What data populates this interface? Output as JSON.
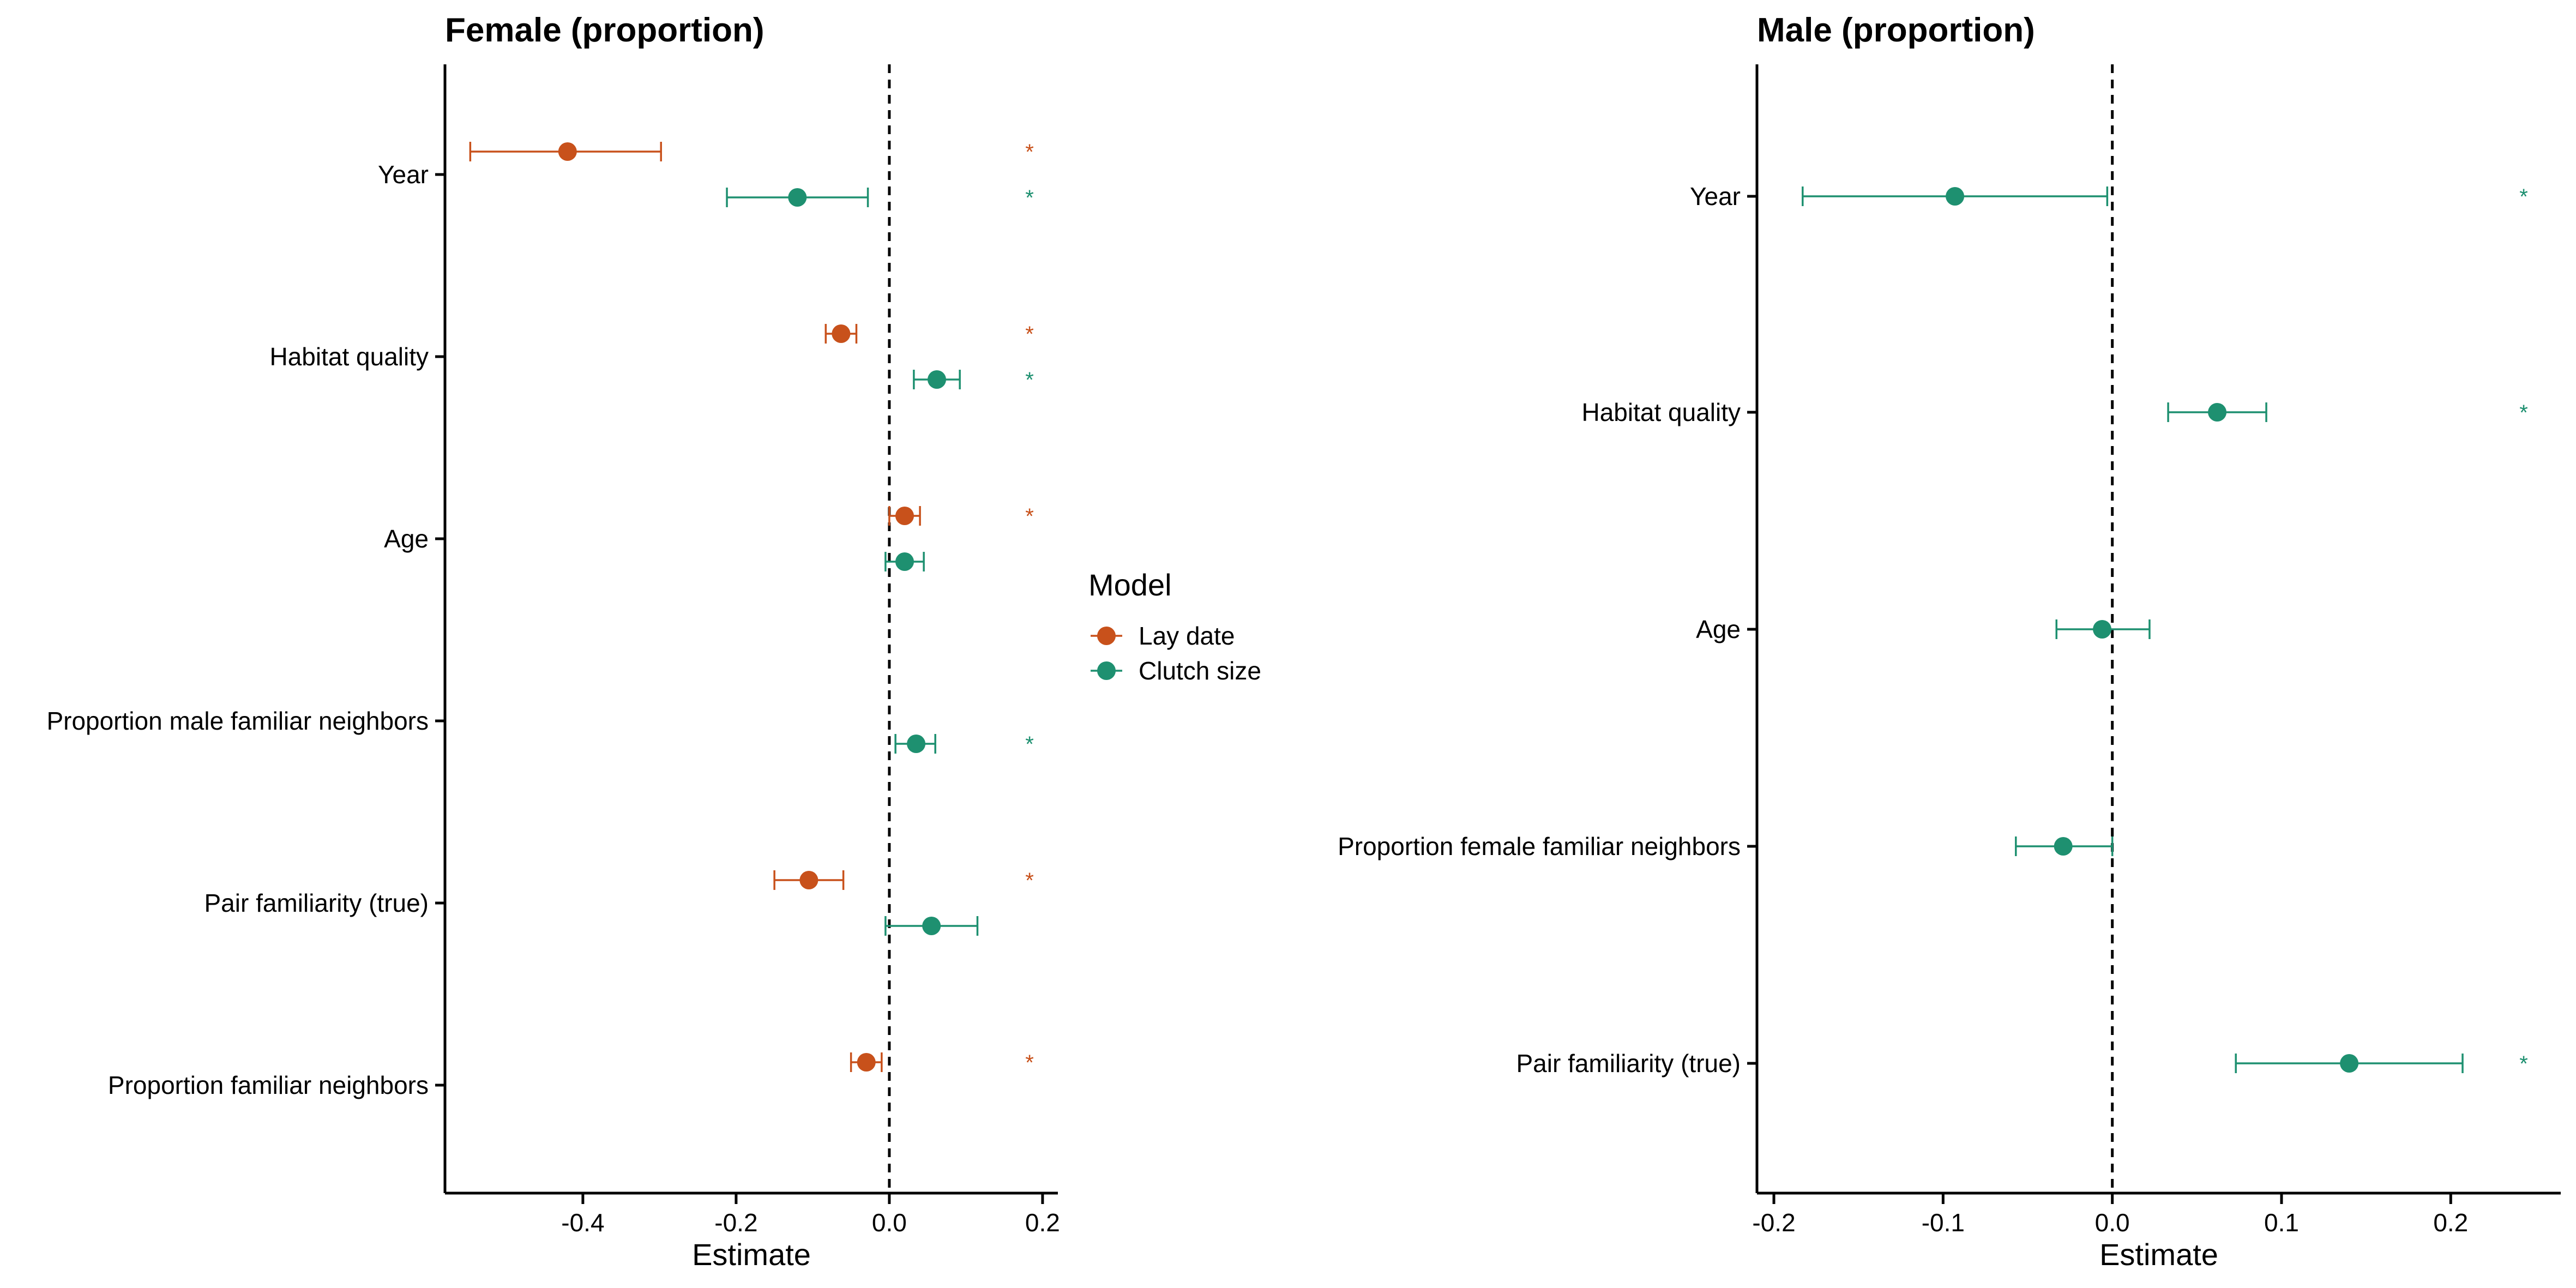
{
  "colors": {
    "lay_date": "#C8511B",
    "clutch_size": "#1E9070",
    "axis": "#000000"
  },
  "legend": {
    "title": "Model",
    "items": [
      {
        "label": "Lay date",
        "color": "#C8511B"
      },
      {
        "label": "Clutch size",
        "color": "#1E9070"
      }
    ]
  },
  "chart_data": [
    {
      "type": "forest",
      "title": "Female (proportion)",
      "xlabel": "Estimate",
      "xlim": [
        -0.58,
        0.22
      ],
      "xticks": [
        -0.4,
        -0.2,
        0.0,
        0.2
      ],
      "xtick_labels": [
        "-0.4",
        "-0.2",
        "0.0",
        "0.2"
      ],
      "reference_line": 0,
      "categories": [
        "Year",
        "Habitat quality",
        "Age",
        "Proportion male familiar neighbors",
        "Pair familiarity (true)",
        "Proportion familiar neighbors"
      ],
      "series": [
        {
          "name": "Lay date",
          "color": "#C8511B",
          "points": [
            {
              "category": "Year",
              "estimate": -0.42,
              "lower": -0.547,
              "upper": -0.298,
              "significant": true
            },
            {
              "category": "Habitat quality",
              "estimate": -0.063,
              "lower": -0.083,
              "upper": -0.043,
              "significant": true
            },
            {
              "category": "Age",
              "estimate": 0.02,
              "lower": 0.0,
              "upper": 0.04,
              "significant": true
            },
            {
              "category": "Pair familiarity (true)",
              "estimate": -0.105,
              "lower": -0.15,
              "upper": -0.06,
              "significant": true
            },
            {
              "category": "Proportion familiar neighbors",
              "estimate": -0.03,
              "lower": -0.05,
              "upper": -0.01,
              "significant": true
            }
          ]
        },
        {
          "name": "Clutch size",
          "color": "#1E9070",
          "points": [
            {
              "category": "Year",
              "estimate": -0.12,
              "lower": -0.212,
              "upper": -0.028,
              "significant": true
            },
            {
              "category": "Habitat quality",
              "estimate": 0.062,
              "lower": 0.032,
              "upper": 0.092,
              "significant": true
            },
            {
              "category": "Age",
              "estimate": 0.02,
              "lower": -0.005,
              "upper": 0.045,
              "significant": false
            },
            {
              "category": "Proportion male familiar neighbors",
              "estimate": 0.035,
              "lower": 0.008,
              "upper": 0.06,
              "significant": true
            },
            {
              "category": "Pair familiarity (true)",
              "estimate": 0.055,
              "lower": -0.005,
              "upper": 0.115,
              "significant": false
            }
          ]
        }
      ]
    },
    {
      "type": "forest",
      "title": "Male (proportion)",
      "xlabel": "Estimate",
      "xlim": [
        -0.21,
        0.265
      ],
      "xticks": [
        -0.2,
        -0.1,
        0.0,
        0.1,
        0.2
      ],
      "xtick_labels": [
        "-0.2",
        "-0.1",
        "0.0",
        "0.1",
        "0.2"
      ],
      "reference_line": 0,
      "categories": [
        "Year",
        "Habitat quality",
        "Age",
        "Proportion female familiar neighbors",
        "Pair familiarity (true)"
      ],
      "series": [
        {
          "name": "Clutch size",
          "color": "#1E9070",
          "points": [
            {
              "category": "Year",
              "estimate": -0.093,
              "lower": -0.183,
              "upper": -0.003,
              "significant": true
            },
            {
              "category": "Habitat quality",
              "estimate": 0.062,
              "lower": 0.033,
              "upper": 0.091,
              "significant": true
            },
            {
              "category": "Age",
              "estimate": -0.006,
              "lower": -0.033,
              "upper": 0.022,
              "significant": false
            },
            {
              "category": "Proportion female familiar neighbors",
              "estimate": -0.029,
              "lower": -0.057,
              "upper": 0.0,
              "significant": false
            },
            {
              "category": "Pair familiarity (true)",
              "estimate": 0.14,
              "lower": 0.073,
              "upper": 0.207,
              "significant": true
            }
          ]
        }
      ]
    }
  ]
}
